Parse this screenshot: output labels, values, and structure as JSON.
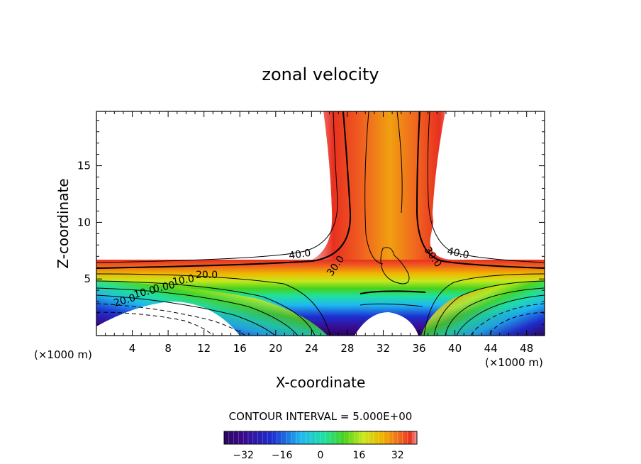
{
  "chart_data": {
    "type": "contour",
    "title": "zonal velocity",
    "xlabel": "X-coordinate",
    "ylabel": "Z-coordinate",
    "x_units": "(×1000 m)",
    "x_ticks": [
      4,
      8,
      12,
      16,
      20,
      24,
      28,
      32,
      36,
      40,
      44,
      48
    ],
    "y_ticks": [
      5,
      10,
      15
    ],
    "xlim": [
      0,
      50
    ],
    "ylim": [
      0,
      19.8
    ],
    "contour_interval_label": "CONTOUR INTERVAL = 5.000E+00",
    "colorbar": {
      "range": [
        -40,
        40
      ],
      "ticks": [
        -32,
        -16,
        0,
        16,
        32
      ],
      "colors": [
        "#3a0a6e",
        "#1c2fd0",
        "#1fb8f0",
        "#18e0a0",
        "#46d21e",
        "#c8e81e",
        "#f0b400",
        "#f06020",
        "#e83020",
        "#f4a8a8"
      ]
    },
    "contour_labels": [
      {
        "text": "40.0",
        "x": 22.5,
        "z": 7.1
      },
      {
        "text": "30.0",
        "x": 27.0,
        "z": 6.2
      },
      {
        "text": "20.0",
        "x": 12.8,
        "z": 5.4
      },
      {
        "text": "10.0",
        "x": 10.3,
        "z": 4.7
      },
      {
        "text": "0.00",
        "x": 8.0,
        "z": 4.2
      },
      {
        "text": "10.0",
        "x": 5.8,
        "z": 3.6
      },
      {
        "text": "20.0",
        "x": 3.6,
        "z": 3.0
      },
      {
        "text": "30.0",
        "x": 37.5,
        "z": 6.5
      },
      {
        "text": "40.0",
        "x": 40.7,
        "z": 6.9
      }
    ]
  }
}
